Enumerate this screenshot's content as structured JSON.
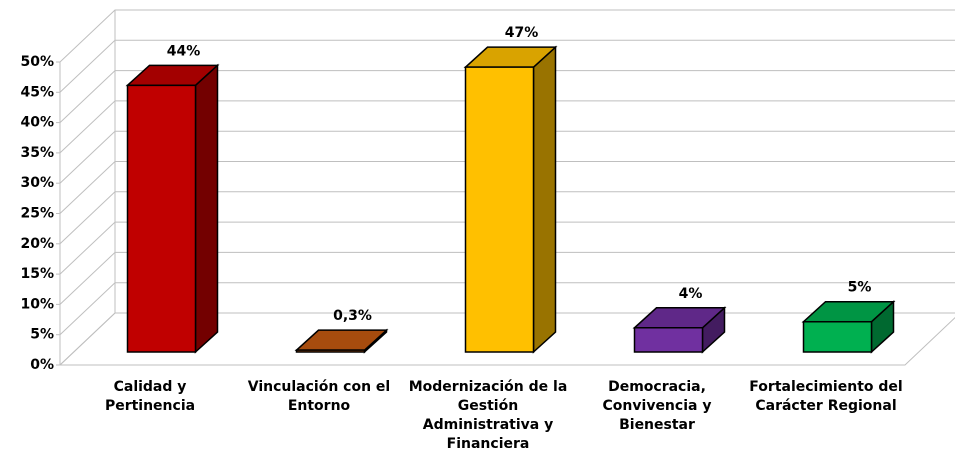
{
  "chart_data": {
    "type": "bar3d",
    "categories": [
      "Calidad y Pertinencia",
      "Vinculación con el Entorno",
      "Modernización de la Gestión Administrativa y Financiera",
      "Democracia, Convivencia y Bienestar",
      "Fortalecimiento del Carácter Regional"
    ],
    "values": [
      44,
      0.3,
      47,
      4,
      5
    ],
    "value_labels": [
      "44%",
      "0,3%",
      "47%",
      "4%",
      "5%"
    ],
    "colors": [
      "#c00000",
      "#c55a11",
      "#ffc000",
      "#7030a0",
      "#00b050"
    ],
    "ylim": [
      0,
      50
    ],
    "yticks": [
      {
        "value": 0,
        "label": "0%"
      },
      {
        "value": 5,
        "label": "5%"
      },
      {
        "value": 10,
        "label": "10%"
      },
      {
        "value": 15,
        "label": "15%"
      },
      {
        "value": 20,
        "label": "20%"
      },
      {
        "value": 25,
        "label": "25%"
      },
      {
        "value": 30,
        "label": "30%"
      },
      {
        "value": 35,
        "label": "35%"
      },
      {
        "value": 40,
        "label": "40%"
      },
      {
        "value": 45,
        "label": "45%"
      },
      {
        "value": 50,
        "label": "50%"
      }
    ],
    "grid": true
  }
}
